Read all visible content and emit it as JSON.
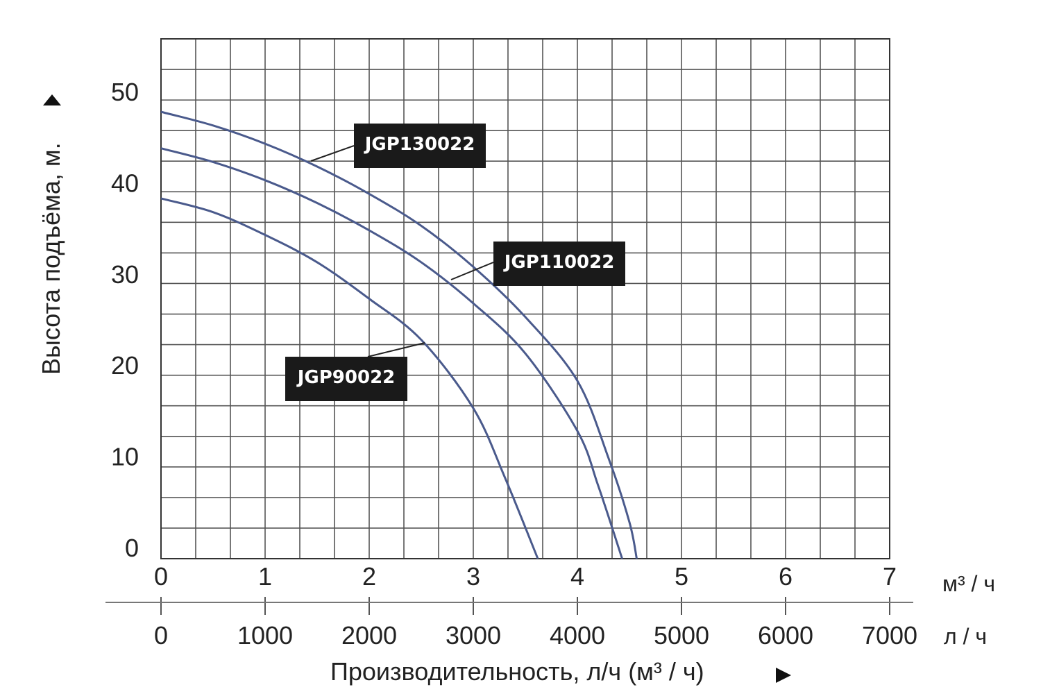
{
  "chart_data": {
    "type": "line",
    "title": "",
    "ylabel": "Высота подъёма, м.",
    "xlabel": "Производительность, л/ч (м³ / ч)",
    "y_ticks": [
      "0",
      "10",
      "20",
      "30",
      "40",
      "50"
    ],
    "x_ticks_m3h": [
      "0",
      "1",
      "2",
      "3",
      "4",
      "5",
      "6",
      "7"
    ],
    "x_ticks_lh": [
      "0",
      "1000",
      "2000",
      "3000",
      "4000",
      "5000",
      "6000",
      "7000"
    ],
    "unit_m3h": "м³ / ч",
    "unit_lh": "л / ч",
    "xlim": [
      0,
      7
    ],
    "ylim": [
      0,
      57
    ],
    "grid": true,
    "series": [
      {
        "name": "JGP130022",
        "color": "#4a5a8c",
        "x": [
          0,
          0.5,
          1,
          1.5,
          2,
          2.5,
          3,
          3.5,
          4,
          4.3,
          4.5,
          4.57
        ],
        "y": [
          49,
          47.5,
          45.5,
          43,
          40,
          36.5,
          32,
          26.5,
          19.5,
          11,
          4,
          0
        ]
      },
      {
        "name": "JGP110022",
        "color": "#4a5a8c",
        "x": [
          0,
          0.5,
          1,
          1.5,
          2,
          2.5,
          3,
          3.5,
          4,
          4.2,
          4.43
        ],
        "y": [
          45,
          43.5,
          41.5,
          39,
          36,
          32.5,
          28,
          22.5,
          14,
          8,
          0
        ]
      },
      {
        "name": "JGP90022",
        "color": "#4a5a8c",
        "x": [
          0,
          0.5,
          1,
          1.5,
          2,
          2.5,
          3,
          3.3,
          3.62
        ],
        "y": [
          39.5,
          38,
          35.5,
          32.5,
          28.5,
          24,
          16.5,
          9,
          0
        ]
      }
    ]
  }
}
